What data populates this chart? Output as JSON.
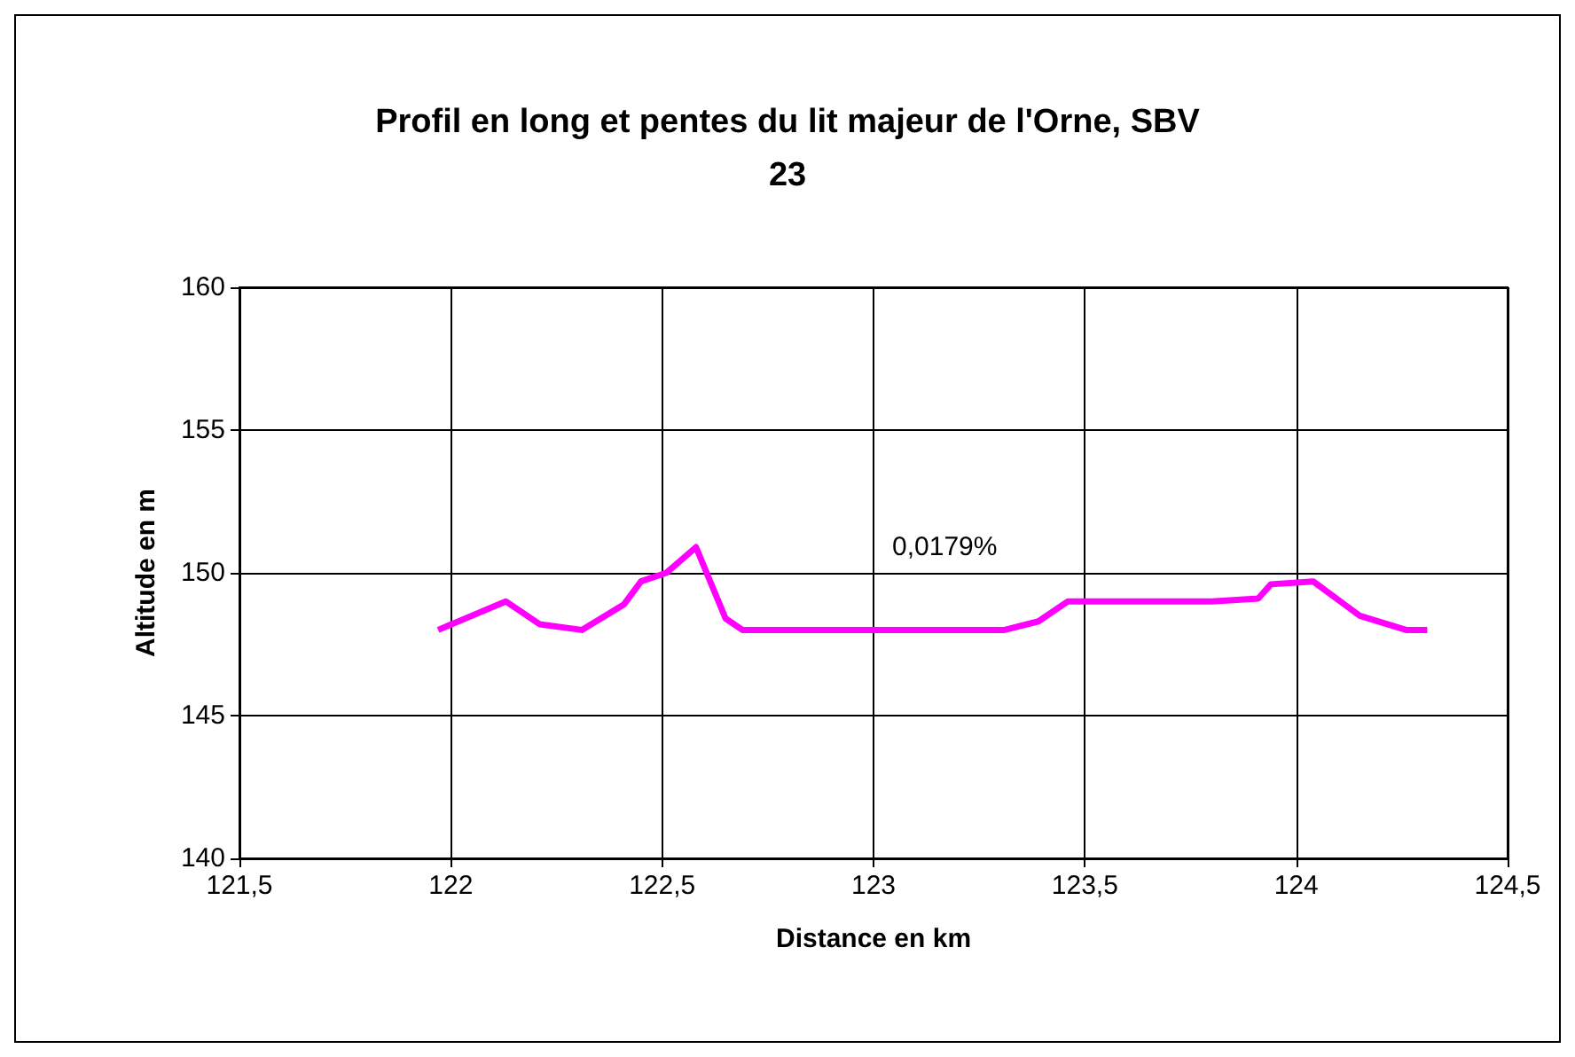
{
  "chart_data": {
    "type": "line",
    "title": "Profil en long et pentes du lit majeur de l'Orne, SBV\n23",
    "xlabel": "Distance en km",
    "ylabel": "Altitude en m",
    "x": [
      121.97,
      122.13,
      122.21,
      122.31,
      122.41,
      122.45,
      122.51,
      122.58,
      122.65,
      122.69,
      122.8,
      123.0,
      123.2,
      123.31,
      123.39,
      123.46,
      123.6,
      123.8,
      123.91,
      123.94,
      124.04,
      124.15,
      124.26,
      124.31
    ],
    "series": [
      {
        "color": "#ff00ff",
        "values": [
          148.0,
          149.0,
          148.2,
          148.0,
          148.9,
          149.7,
          150.0,
          150.9,
          148.4,
          148.0,
          148.0,
          148.0,
          148.0,
          148.0,
          148.3,
          149.0,
          149.0,
          149.0,
          149.1,
          149.6,
          149.7,
          148.5,
          148.0,
          148.0
        ]
      }
    ],
    "xlim": [
      121.5,
      124.5
    ],
    "xticks": [
      {
        "value": 121.5,
        "label": "121,5"
      },
      122,
      {
        "value": 122.5,
        "label": "122,5"
      },
      123,
      {
        "value": 123.5,
        "label": "123,5"
      },
      124,
      {
        "value": 124.5,
        "label": "124,5"
      }
    ],
    "ylim": [
      140,
      160
    ],
    "yticks": [
      140,
      145,
      150,
      155,
      160
    ],
    "grid": true,
    "marker": "none",
    "line_style": "solid",
    "annotations": [
      "0,0179%"
    ]
  }
}
